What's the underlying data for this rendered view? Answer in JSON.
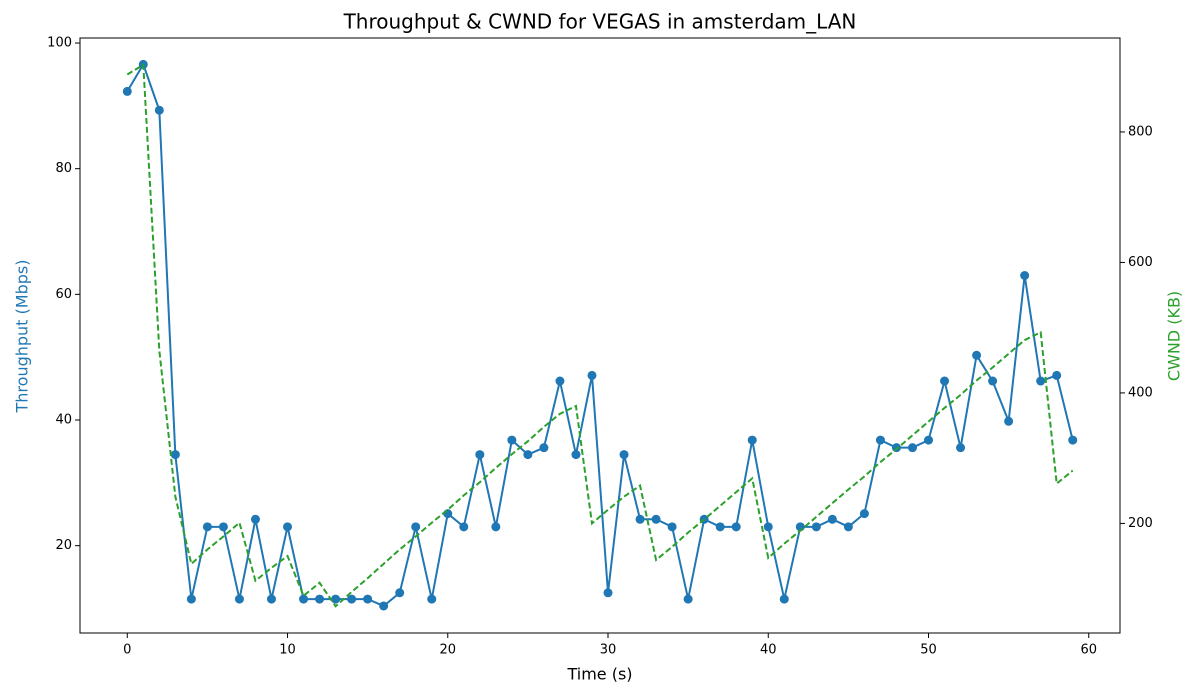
{
  "chart_data": {
    "type": "line",
    "title": "Throughput & CWND for VEGAS in amsterdam_LAN",
    "xlabel": "Time (s)",
    "ylabel": "Throughput (Mbps)",
    "y2label": "CWND (KB)",
    "x": [
      0,
      1,
      2,
      3,
      4,
      5,
      6,
      7,
      8,
      9,
      10,
      11,
      12,
      13,
      14,
      15,
      16,
      17,
      18,
      19,
      20,
      21,
      22,
      23,
      24,
      25,
      26,
      27,
      28,
      29,
      30,
      31,
      32,
      33,
      34,
      35,
      36,
      37,
      38,
      39,
      40,
      41,
      42,
      43,
      44,
      45,
      46,
      47,
      48,
      49,
      50,
      51,
      52,
      53,
      54,
      55,
      56,
      57,
      58,
      59
    ],
    "series": [
      {
        "name": "Throughput (Mbps)",
        "color": "#1f77b4",
        "style": "solid-marker",
        "values": [
          92.3,
          96.6,
          89.3,
          34.5,
          11.5,
          23.0,
          23.0,
          11.5,
          24.2,
          11.5,
          23.0,
          11.5,
          11.5,
          11.5,
          11.5,
          11.5,
          10.4,
          12.5,
          23.0,
          11.5,
          25.1,
          23.0,
          34.5,
          23.0,
          36.8,
          34.5,
          35.6,
          46.2,
          34.5,
          47.1,
          12.5,
          34.5,
          24.2,
          24.2,
          23.0,
          11.5,
          24.2,
          23.0,
          23.0,
          36.8,
          23.0,
          11.5,
          23.0,
          23.0,
          24.2,
          23.0,
          25.1,
          36.8,
          35.6,
          35.6,
          36.8,
          46.2,
          35.6,
          50.3,
          46.2,
          39.8,
          63.0,
          46.2,
          47.1,
          36.8
        ]
      },
      {
        "name": "CWND (KB)",
        "color": "#2ca02c",
        "style": "dashed",
        "axis": "y2",
        "values": [
          888,
          903,
          465,
          241,
          138,
          160,
          180,
          201,
          112,
          132,
          150,
          89,
          109,
          73,
          95,
          116,
          138,
          160,
          180,
          201,
          221,
          243,
          263,
          285,
          306,
          326,
          348,
          368,
          380,
          200,
          221,
          241,
          258,
          144,
          164,
          186,
          206,
          227,
          248,
          269,
          147,
          169,
          189,
          210,
          231,
          252,
          272,
          294,
          314,
          335,
          356,
          377,
          397,
          419,
          439,
          460,
          481,
          493,
          261,
          281
        ]
      }
    ],
    "xlim": [
      -2.95,
      61.95
    ],
    "xticks": [
      0,
      10,
      20,
      30,
      40,
      50,
      60
    ],
    "ylim": [
      6.1,
      100.8
    ],
    "yticks": [
      20,
      40,
      60,
      80,
      100
    ],
    "y2lim": [
      32,
      944
    ],
    "y2ticks": [
      200,
      400,
      600,
      800
    ]
  }
}
